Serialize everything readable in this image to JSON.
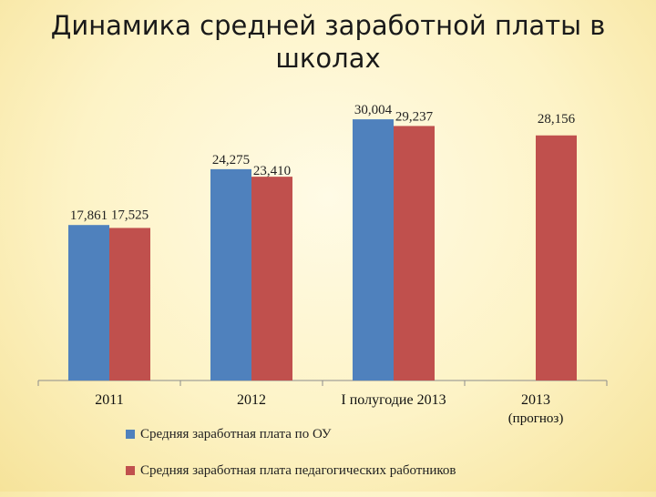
{
  "title_line1": "Динамика средней заработной платы в",
  "title_line2": "школах",
  "colors": {
    "series1": "#4f81bd",
    "series2": "#c0504d"
  },
  "chart_data": {
    "type": "bar",
    "categories": [
      "2011",
      "2012",
      "I полугодие 2013",
      "2013\n(прогноз)"
    ],
    "series": [
      {
        "name": "Средняя заработная плата по ОУ",
        "values": [
          17.861,
          24.275,
          30.004,
          null
        ],
        "labels": [
          "17,861",
          "24,275",
          "30,004",
          ""
        ]
      },
      {
        "name": "Средняя заработная плата педагогических работников",
        "values": [
          17.525,
          23.41,
          29.237,
          28.156
        ],
        "labels": [
          "17,525",
          "23,410",
          "29,237",
          "28,156"
        ]
      }
    ],
    "ylim": [
      0,
      32
    ],
    "grid": false,
    "legend": "bottom"
  }
}
